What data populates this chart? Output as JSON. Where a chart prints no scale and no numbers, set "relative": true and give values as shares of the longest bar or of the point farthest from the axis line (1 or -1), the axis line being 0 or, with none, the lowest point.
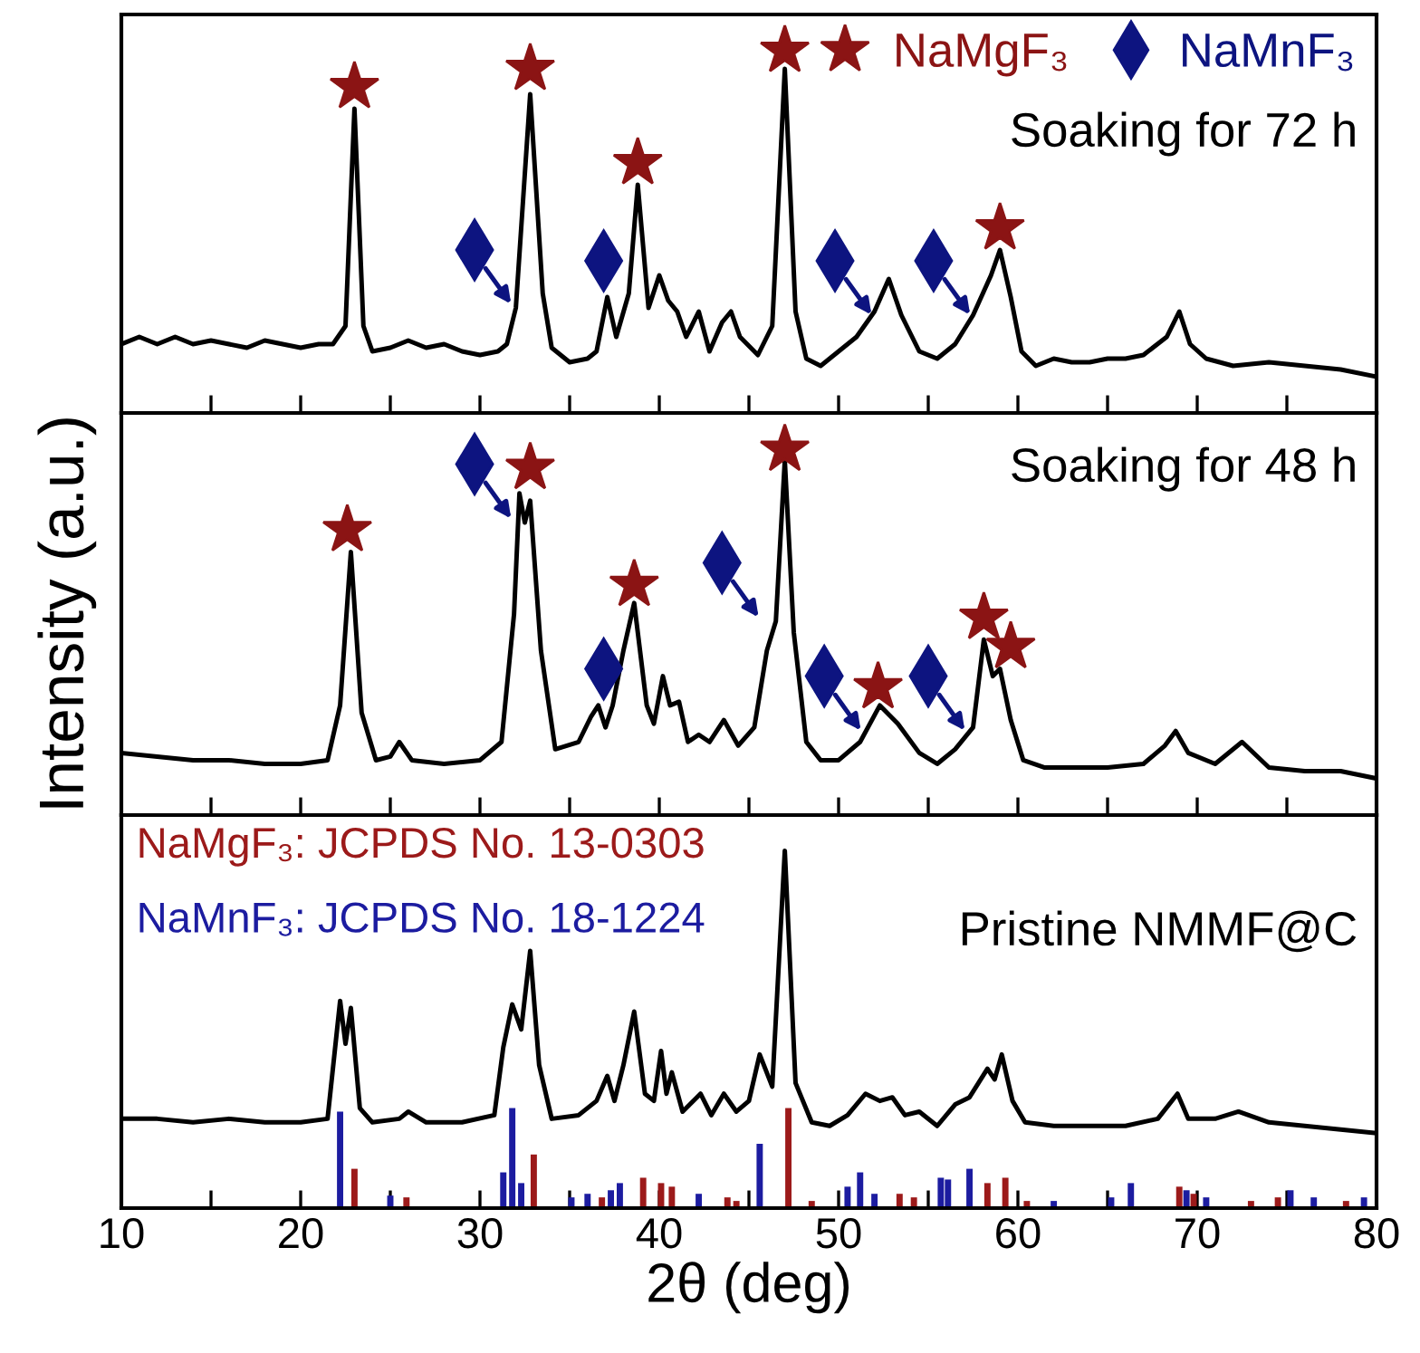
{
  "chart_data": [
    {
      "type": "line",
      "relative": true,
      "xlim": [
        10,
        80
      ],
      "xticks": [
        10,
        {
          "value": 15,
          "label": null
        },
        20,
        {
          "value": 25,
          "label": null
        },
        30,
        {
          "value": 35,
          "label": null
        },
        40,
        {
          "value": 45,
          "label": null
        },
        50,
        {
          "value": 55,
          "label": null
        },
        60,
        {
          "value": 65,
          "label": null
        },
        70,
        {
          "value": 75,
          "label": null
        },
        80
      ],
      "tick_labels": false,
      "grid": false,
      "legend": "top right",
      "annotations": [
        "Soaking for 72 h"
      ],
      "series": [
        {
          "color": "#000000",
          "x": [
            10,
            11,
            12,
            13,
            14,
            15,
            16,
            17,
            18,
            19,
            20,
            21,
            21.8,
            22.5,
            23,
            23.5,
            24,
            25,
            26,
            27,
            28,
            29,
            30,
            31,
            31.5,
            32,
            32.8,
            33.5,
            34,
            35,
            36,
            36.5,
            37.1,
            37.6,
            38.3,
            38.8,
            39.4,
            40.0,
            40.5,
            41,
            41.5,
            42.2,
            42.8,
            43.5,
            44,
            44.5,
            45.5,
            46.3,
            47,
            47.6,
            48.2,
            49,
            50,
            51,
            52,
            52.8,
            53.5,
            54.5,
            55.5,
            56.5,
            57.5,
            58.5,
            59,
            59.6,
            60.2,
            61,
            62,
            63,
            64,
            65,
            66,
            67,
            68.3,
            69,
            69.6,
            70.5,
            72,
            74,
            76,
            78,
            80
          ],
          "values": [
            0.19,
            0.21,
            0.19,
            0.21,
            0.19,
            0.2,
            0.19,
            0.18,
            0.2,
            0.19,
            0.18,
            0.19,
            0.19,
            0.24,
            0.84,
            0.24,
            0.17,
            0.18,
            0.2,
            0.18,
            0.19,
            0.17,
            0.16,
            0.17,
            0.19,
            0.29,
            0.88,
            0.33,
            0.18,
            0.14,
            0.15,
            0.17,
            0.32,
            0.21,
            0.33,
            0.63,
            0.29,
            0.38,
            0.31,
            0.28,
            0.21,
            0.28,
            0.17,
            0.25,
            0.28,
            0.21,
            0.16,
            0.24,
            0.95,
            0.28,
            0.15,
            0.13,
            0.17,
            0.21,
            0.28,
            0.37,
            0.27,
            0.17,
            0.15,
            0.19,
            0.27,
            0.38,
            0.45,
            0.32,
            0.17,
            0.13,
            0.15,
            0.14,
            0.14,
            0.15,
            0.15,
            0.16,
            0.21,
            0.28,
            0.19,
            0.15,
            0.13,
            0.14,
            0.13,
            0.12,
            0.1
          ]
        },
        {
          "type": "scatter",
          "name": "NaMgF₃",
          "marker": "star",
          "color": "#8b1414",
          "x": [
            23.0,
            32.8,
            38.8,
            47.0,
            59.0
          ],
          "values": [
            0.9,
            0.95,
            0.69,
            1.0,
            0.51
          ]
        },
        {
          "type": "scatter",
          "name": "NaMnF₃",
          "marker": "diamond",
          "line_style": "solid",
          "color": "#0d1480",
          "x": [
            29.7,
            49.8,
            55.3
          ],
          "values": [
            0.45,
            0.42,
            0.42
          ]
        },
        {
          "type": "scatter",
          "marker": "diamond",
          "color": "#0d1480",
          "x": [
            36.9
          ],
          "values": [
            0.42
          ]
        }
      ]
    },
    {
      "type": "line",
      "relative": true,
      "xlim": [
        10,
        80
      ],
      "xticks": [
        10,
        {
          "value": 15,
          "label": null
        },
        20,
        {
          "value": 25,
          "label": null
        },
        30,
        {
          "value": 35,
          "label": null
        },
        40,
        {
          "value": 45,
          "label": null
        },
        50,
        {
          "value": 55,
          "label": null
        },
        60,
        {
          "value": 65,
          "label": null
        },
        70,
        {
          "value": 75,
          "label": null
        },
        80
      ],
      "tick_labels": false,
      "grid": false,
      "ylabel": "Intensity (a.u.)",
      "annotations": [
        "Soaking for 48 h"
      ],
      "series": [
        {
          "color": "#000000",
          "x": [
            10,
            12,
            14,
            16,
            18,
            20,
            21.5,
            22.2,
            22.8,
            23.4,
            24.2,
            25,
            25.5,
            26.2,
            28,
            30,
            31.2,
            31.9,
            32.2,
            32.5,
            32.8,
            33.4,
            34.2,
            35.5,
            36.2,
            36.6,
            37.0,
            37.4,
            38.0,
            38.6,
            39.3,
            39.7,
            40.2,
            40.6,
            41.1,
            41.6,
            42.2,
            42.8,
            43.6,
            44.4,
            45.3,
            46.0,
            46.5,
            47.0,
            47.5,
            48.2,
            49,
            50,
            51.2,
            52.3,
            53.3,
            54.5,
            55.5,
            56.5,
            57.5,
            58.1,
            58.6,
            59.0,
            59.6,
            60.3,
            61.5,
            63,
            65,
            67,
            68.2,
            68.8,
            69.5,
            71,
            72.5,
            74,
            76,
            78,
            80
          ],
          "values": [
            0.17,
            0.16,
            0.15,
            0.15,
            0.14,
            0.14,
            0.15,
            0.3,
            0.72,
            0.28,
            0.15,
            0.16,
            0.2,
            0.15,
            0.14,
            0.15,
            0.2,
            0.55,
            0.88,
            0.8,
            0.86,
            0.45,
            0.18,
            0.2,
            0.27,
            0.3,
            0.24,
            0.3,
            0.45,
            0.58,
            0.3,
            0.25,
            0.38,
            0.3,
            0.31,
            0.2,
            0.22,
            0.2,
            0.26,
            0.19,
            0.24,
            0.45,
            0.53,
            0.97,
            0.5,
            0.2,
            0.15,
            0.15,
            0.2,
            0.3,
            0.25,
            0.17,
            0.14,
            0.18,
            0.24,
            0.48,
            0.38,
            0.4,
            0.26,
            0.15,
            0.13,
            0.13,
            0.13,
            0.14,
            0.19,
            0.23,
            0.17,
            0.14,
            0.2,
            0.13,
            0.12,
            0.12,
            0.1
          ]
        },
        {
          "type": "scatter",
          "marker": "star",
          "color": "#8b1414",
          "x": [
            22.6,
            32.8,
            38.6,
            47.0,
            52.2,
            58.1,
            59.6
          ],
          "values": [
            0.78,
            0.95,
            0.63,
            1.0,
            0.35,
            0.54,
            0.46
          ]
        },
        {
          "type": "scatter",
          "marker": "diamond",
          "line_style": "solid",
          "color": "#0d1480",
          "x": [
            29.7,
            43.5,
            49.2,
            55.0
          ],
          "values": [
            0.96,
            0.69,
            0.38,
            0.38
          ]
        },
        {
          "type": "scatter",
          "marker": "diamond",
          "color": "#0d1480",
          "x": [
            36.9
          ],
          "values": [
            0.4
          ]
        }
      ]
    },
    {
      "type": "line",
      "relative": true,
      "xlim": [
        10,
        80
      ],
      "xticks": [
        10,
        {
          "value": 15,
          "label": null
        },
        20,
        {
          "value": 25,
          "label": null
        },
        30,
        {
          "value": 35,
          "label": null
        },
        40,
        {
          "value": 45,
          "label": null
        },
        50,
        {
          "value": 55,
          "label": null
        },
        60,
        {
          "value": 65,
          "label": null
        },
        70,
        {
          "value": 75,
          "label": null
        },
        80
      ],
      "tick_labels": "x",
      "grid": false,
      "xlabel": "2θ (deg)",
      "annotations": [
        "NaMgF₃: JCPDS No. 13-0303",
        "NaMnF₃: JCPDS No. 18-1224",
        "Pristine NMMF@C"
      ],
      "series": [
        {
          "type": "bar",
          "color": "#9c1a1a",
          "x": [
            23.0,
            25.9,
            33.0,
            36.8,
            39.1,
            40.1,
            40.7,
            43.8,
            44.3,
            47.2,
            48.5,
            53.4,
            54.2,
            58.3,
            59.3,
            60.5,
            69.0,
            69.8,
            73.0,
            74.5,
            78.3
          ],
          "values": [
            0.11,
            0.03,
            0.15,
            0.03,
            0.085,
            0.07,
            0.06,
            0.03,
            0.02,
            0.28,
            0.02,
            0.04,
            0.03,
            0.07,
            0.085,
            0.02,
            0.06,
            0.04,
            0.02,
            0.03,
            0.02
          ]
        },
        {
          "type": "bar",
          "color": "#1c1ca0",
          "x": [
            22.2,
            25.0,
            31.3,
            31.8,
            32.3,
            35.1,
            36.0,
            37.3,
            37.8,
            42.2,
            45.6,
            50.5,
            51.2,
            52.0,
            55.7,
            56.1,
            57.3,
            62.0,
            65.2,
            66.3,
            69.4,
            70.5,
            75.2,
            76.5,
            79.3
          ],
          "values": [
            0.27,
            0.035,
            0.1,
            0.28,
            0.07,
            0.03,
            0.04,
            0.05,
            0.07,
            0.04,
            0.18,
            0.06,
            0.1,
            0.04,
            0.085,
            0.08,
            0.11,
            0.02,
            0.03,
            0.07,
            0.05,
            0.03,
            0.05,
            0.03,
            0.03
          ]
        },
        {
          "color": "#000000",
          "x": [
            10,
            12,
            14,
            16,
            18,
            20,
            21.5,
            22.2,
            22.5,
            22.8,
            23.3,
            24,
            25.5,
            26,
            27,
            29,
            30.8,
            31.3,
            31.8,
            32.3,
            32.8,
            33.3,
            34,
            35.5,
            36.5,
            37.1,
            37.5,
            38.0,
            38.6,
            39.2,
            39.7,
            40.1,
            40.4,
            40.7,
            41.3,
            42.3,
            42.9,
            43.6,
            44.3,
            45.0,
            45.6,
            46.3,
            47.0,
            47.6,
            48.5,
            49.5,
            50.5,
            51.5,
            52.3,
            53.0,
            53.7,
            54.5,
            55.5,
            56.5,
            57.3,
            58.3,
            58.7,
            59.1,
            59.7,
            60.4,
            62,
            64,
            66,
            67.8,
            68.9,
            69.5,
            71,
            72.3,
            74,
            76,
            78,
            80
          ],
          "values": [
            0.25,
            0.25,
            0.24,
            0.25,
            0.24,
            0.24,
            0.25,
            0.58,
            0.46,
            0.56,
            0.28,
            0.24,
            0.25,
            0.27,
            0.24,
            0.24,
            0.26,
            0.45,
            0.57,
            0.5,
            0.72,
            0.4,
            0.25,
            0.26,
            0.3,
            0.37,
            0.3,
            0.4,
            0.55,
            0.32,
            0.3,
            0.44,
            0.32,
            0.38,
            0.27,
            0.32,
            0.26,
            0.32,
            0.27,
            0.3,
            0.43,
            0.34,
            1.0,
            0.35,
            0.24,
            0.23,
            0.26,
            0.32,
            0.3,
            0.31,
            0.26,
            0.27,
            0.23,
            0.29,
            0.31,
            0.39,
            0.36,
            0.43,
            0.3,
            0.24,
            0.23,
            0.23,
            0.23,
            0.25,
            0.32,
            0.25,
            0.25,
            0.27,
            0.24,
            0.23,
            0.22,
            0.21
          ]
        }
      ]
    }
  ]
}
